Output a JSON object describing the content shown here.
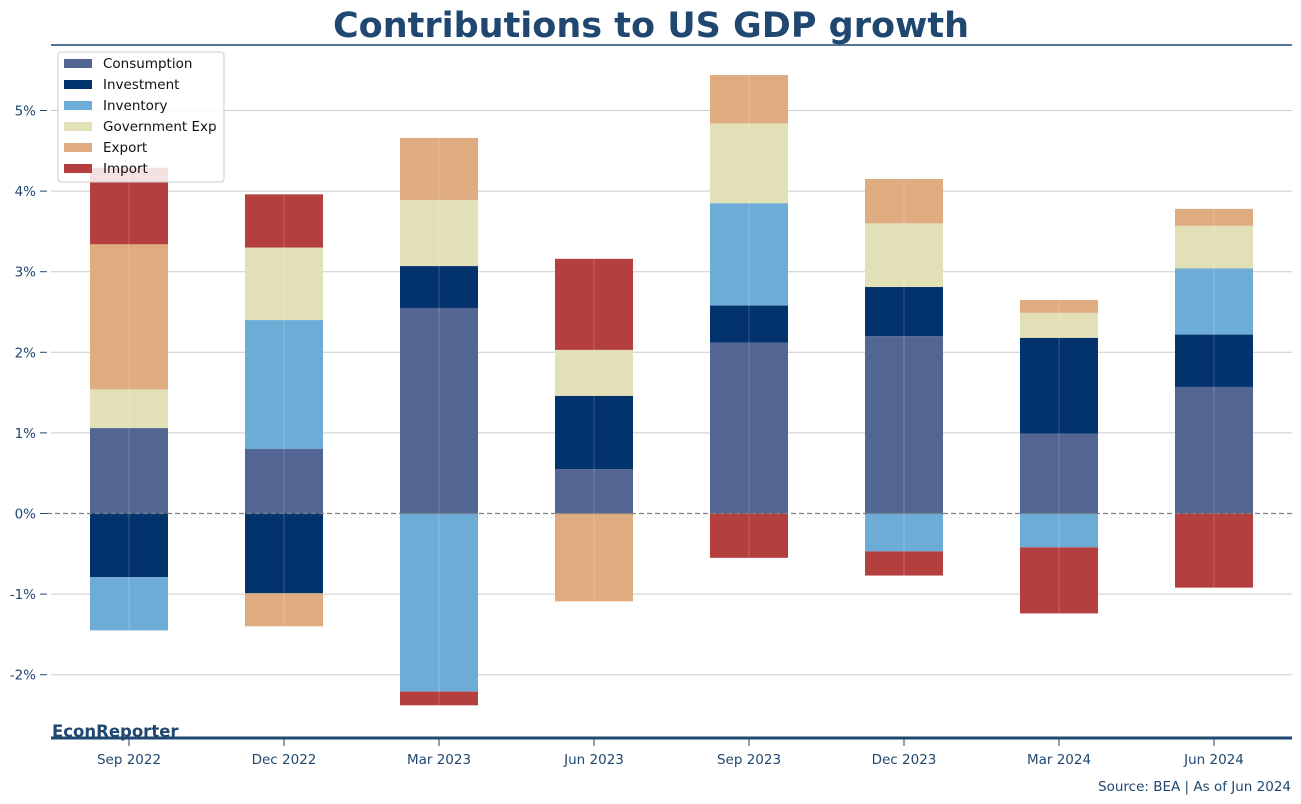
{
  "chart_data": {
    "type": "bar",
    "stacked": true,
    "title": "Contributions to US GDP growth",
    "xlabel": "",
    "ylabel": "",
    "ylim": [
      -2.8,
      5.75
    ],
    "yticks": [
      -2,
      -1,
      0,
      1,
      2,
      3,
      4,
      5
    ],
    "ytick_labels": [
      "-2%",
      "-1%",
      "0%",
      "1%",
      "2%",
      "3%",
      "4%",
      "5%"
    ],
    "grid": true,
    "zero_line": "dashed",
    "legend_position": "top-left",
    "categories": [
      "Sep 2022",
      "Dec 2022",
      "Mar 2023",
      "Jun 2023",
      "Sep 2023",
      "Dec 2023",
      "Mar 2024",
      "Jun 2024"
    ],
    "series": [
      {
        "name": "Consumption",
        "color": "#536592",
        "values": [
          1.06,
          0.8,
          2.55,
          0.55,
          2.12,
          2.2,
          0.99,
          1.57
        ]
      },
      {
        "name": "Investment",
        "color": "#03336c",
        "values": [
          -0.79,
          -0.99,
          0.52,
          0.91,
          0.46,
          0.61,
          1.19,
          0.65
        ]
      },
      {
        "name": "Inventory",
        "color": "#6eacd8",
        "values": [
          -0.66,
          1.6,
          -2.21,
          0.0,
          1.27,
          -0.47,
          -0.42,
          0.82
        ]
      },
      {
        "name": "Government Exp",
        "color": "#e1e0b6",
        "values": [
          0.48,
          0.9,
          0.82,
          0.57,
          0.99,
          0.79,
          0.31,
          0.53
        ]
      },
      {
        "name": "Export",
        "color": "#dfab80",
        "values": [
          1.8,
          -0.41,
          0.77,
          -1.09,
          0.6,
          0.55,
          0.16,
          0.21
        ]
      },
      {
        "name": "Import",
        "color": "#b43f3f",
        "values": [
          0.95,
          0.66,
          -0.17,
          1.13,
          -0.55,
          -0.3,
          -0.82,
          -0.92
        ]
      }
    ]
  },
  "footer": {
    "brand": "EconReporter",
    "source": "Source: BEA | As of Jun 2024"
  },
  "colors": {
    "text": "#1f4770",
    "rule": "#1f4770",
    "grid": "#cccccc",
    "zero_line": "#808080"
  }
}
